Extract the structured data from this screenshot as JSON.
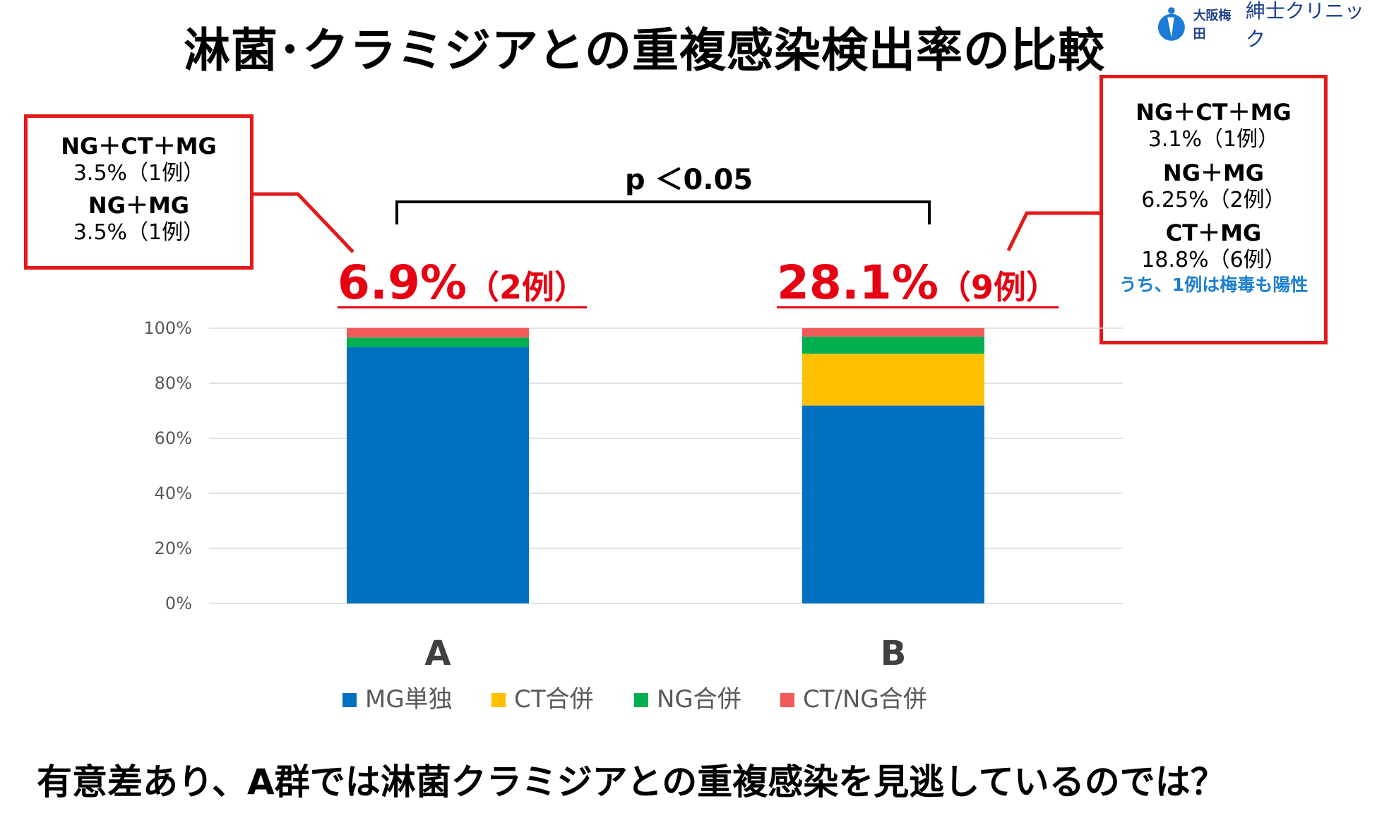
{
  "title": "淋菌･クラミジアとの重複感染検出率の比較",
  "logo": {
    "small": "大阪梅田",
    "big": "紳士クリニック"
  },
  "callout_left": {
    "items": [
      {
        "combo": "NG＋CT＋MG",
        "value": "3.5%（1例）"
      },
      {
        "combo": "NG＋MG",
        "value": "3.5%（1例）"
      }
    ]
  },
  "callout_right": {
    "items": [
      {
        "combo": "NG＋CT＋MG",
        "value": "3.1%（1例）"
      },
      {
        "combo": "NG＋MG",
        "value": "6.25%（2例）"
      },
      {
        "combo": "CT＋MG",
        "value": "18.8%（6例）"
      }
    ],
    "note": "うち、1例は梅毒も陽性"
  },
  "headline_a": {
    "pct": "6.9%",
    "count": "（2例）"
  },
  "headline_b": {
    "pct": "28.1%",
    "count": "（9例）"
  },
  "significance": "p ＜0.05",
  "footer": "有意差あり、A群では淋菌クラミジアとの重複感染を見逃しているのでは？",
  "chart_data": {
    "type": "bar",
    "stacked": true,
    "categories": [
      "A",
      "B"
    ],
    "series": [
      {
        "name": "MG単独",
        "color": "#0070c0",
        "values": [
          93.1,
          71.9
        ]
      },
      {
        "name": "CT合併",
        "color": "#ffc000",
        "values": [
          0,
          18.8
        ]
      },
      {
        "name": "NG合併",
        "color": "#00b050",
        "values": [
          3.5,
          6.25
        ]
      },
      {
        "name": "CT/NG合併",
        "color": "#f15a5a",
        "values": [
          3.5,
          3.1
        ]
      }
    ],
    "ylim": [
      0,
      100
    ],
    "yticks": [
      "0%",
      "20%",
      "40%",
      "60%",
      "80%",
      "100%"
    ],
    "grid": true,
    "legend": "bottom"
  }
}
